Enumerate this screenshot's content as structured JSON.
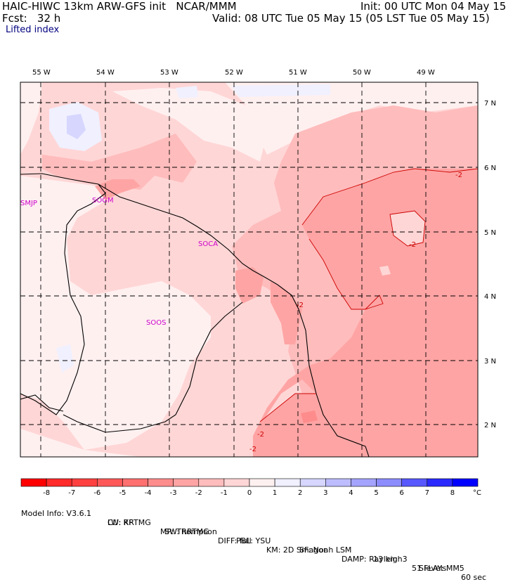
{
  "header": {
    "title_left": "HAIC-HIWC 13km ARW-GFS init   NCAR/MMM",
    "fcst": "Fcst:   32 h",
    "field": "Lifted index",
    "init": "Init: 00 UTC Mon 04 May 15",
    "valid": "Valid: 08 UTC Tue 05 May 15 (05 LST Tue 05 May 15)"
  },
  "axes": {
    "lon_labels": [
      "55 W",
      "54 W",
      "53 W",
      "52 W",
      "51 W",
      "50 W",
      "49 W"
    ],
    "lat_labels": [
      "7 N",
      "6 N",
      "5 N",
      "4 N",
      "3 N",
      "2 N"
    ]
  },
  "stations": [
    {
      "id": "SMJP",
      "label": "SMJP"
    },
    {
      "id": "SOGM",
      "label": "SOGM"
    },
    {
      "id": "SOCA",
      "label": "SOCA"
    },
    {
      "id": "SOOS",
      "label": "SOOS"
    }
  ],
  "contour_labels": [
    "-2",
    "-2",
    "-2",
    "-2",
    "-2"
  ],
  "colorbar": {
    "labels": [
      "-8",
      "-7",
      "-6",
      "-5",
      "-4",
      "-3",
      "-2",
      "-1",
      "0",
      "1",
      "2",
      "3",
      "4",
      "5",
      "6",
      "7",
      "8"
    ],
    "unit": "°C",
    "colors": [
      "#ff0000",
      "#ff2a2a",
      "#ff4040",
      "#ff5858",
      "#ff7070",
      "#ff8c8c",
      "#ffa4a4",
      "#ffbcbc",
      "#ffd6d6",
      "#fff0f0",
      "#f0f0ff",
      "#d6d6ff",
      "#bcbcff",
      "#a4a4ff",
      "#8c8cff",
      "#5858ff",
      "#2a2aff",
      "#0000ff"
    ]
  },
  "footer": {
    "line1": [
      "Model Info: V3.6.1",
      "CU: KF",
      "MP: Thompson",
      "PBL: YSU",
      "SF: Noah LSM",
      "13 km",
      "51 levels",
      "60 sec"
    ],
    "line2": [
      "LW: RRTMG",
      "SW: RRTMG",
      "DIFF: full",
      "KM: 2D Smagor",
      "DAMP: Rayleigh3",
      "SFLAY: MM5"
    ]
  }
}
